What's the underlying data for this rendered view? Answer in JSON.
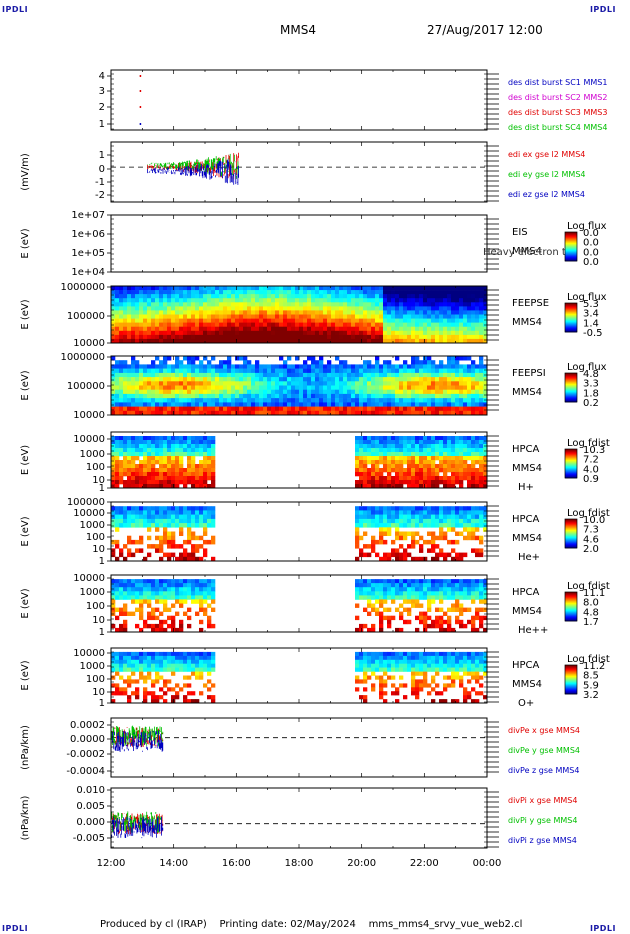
{
  "corner_label": "IPDLI",
  "header": {
    "spacecraft": "MMS4",
    "datetime": "27/Aug/2017 12:00"
  },
  "footer": {
    "produced_by": "Produced by cl (IRAP)",
    "printing_date": "Printing date: 02/May/2024",
    "filename": "mms_mms4_srvy_vue_web2.cl"
  },
  "colors": {
    "red": "#e00000",
    "green": "#00c000",
    "blue": "#0000c0",
    "magenta": "#d000d0"
  },
  "chart_data": [
    {
      "type": "scatter",
      "id": "burst",
      "yticks": [
        "4",
        "3",
        "2",
        "1"
      ],
      "ylabel": "",
      "legend": [
        {
          "text": "des dist burst SC1 MMS1",
          "color": "#0000c0"
        },
        {
          "text": "des dist burst SC2 MMS2",
          "color": "#d000d0"
        },
        {
          "text": "des dist burst SC3 MMS3",
          "color": "#e00000"
        },
        {
          "text": "des dist burst SC4 MMS4",
          "color": "#00c000"
        }
      ],
      "points": [
        {
          "t": "12:30",
          "sc": 4,
          "color": "#e00000"
        },
        {
          "t": "12:30",
          "sc": 3,
          "color": "#e00000"
        },
        {
          "t": "12:30",
          "sc": 2,
          "color": "#e00000"
        },
        {
          "t": "12:30",
          "sc": 1,
          "color": "#0000c0"
        }
      ]
    },
    {
      "type": "line",
      "id": "efield",
      "ylabel": "(mV/m)",
      "yticks": [
        "1",
        "0",
        "-1",
        "-2"
      ],
      "ylim": [
        -2.5,
        1.8
      ],
      "zero_line": true,
      "legend": [
        {
          "text": "edi ex gse l2 MMS4",
          "color": "#e00000"
        },
        {
          "text": "edi ey gse l2 MMS4",
          "color": "#00c000"
        },
        {
          "text": "edi ez gse l2 MMS4",
          "color": "#0000c0"
        }
      ],
      "data_range": [
        "13:10",
        "16:05"
      ]
    },
    {
      "type": "heatmap",
      "id": "eis",
      "ylabel": "E (eV)",
      "yticks": [
        "1e+07",
        "1e+06",
        "1e+05",
        "1e+04"
      ],
      "instrument": [
        "EIS",
        "MMS4"
      ],
      "overlay_text": "Heavy electron to",
      "cbar_title": "Log flux",
      "cbar_ticks": [
        "0.0",
        "0.0",
        "0.0",
        "0.0"
      ]
    },
    {
      "type": "heatmap",
      "id": "feepse",
      "ylabel": "E (eV)",
      "yticks": [
        "1000000",
        "100000",
        "10000"
      ],
      "instrument": [
        "FEEPSE",
        "MMS4"
      ],
      "cbar_title": "Log flux",
      "cbar_ticks": [
        "5.3",
        "3.4",
        "1.4",
        "-0.5"
      ]
    },
    {
      "type": "heatmap",
      "id": "feepsi",
      "ylabel": "E (eV)",
      "yticks": [
        "1000000",
        "100000",
        "10000"
      ],
      "instrument": [
        "FEEPSI",
        "MMS4"
      ],
      "cbar_title": "Log flux",
      "cbar_ticks": [
        "4.8",
        "3.3",
        "1.8",
        "0.2"
      ]
    },
    {
      "type": "heatmap",
      "id": "hpca_h",
      "ylabel": "E (eV)",
      "yticks": [
        "10000",
        "1000",
        "100",
        "10",
        "1"
      ],
      "instrument": [
        "HPCA",
        "MMS4",
        "H+"
      ],
      "cbar_title": "Log fdist",
      "cbar_ticks": [
        "10.3",
        "7.2",
        "4.0",
        "0.9"
      ],
      "data_intervals": [
        [
          "12:00",
          "15:20"
        ],
        [
          "19:50",
          "00:00"
        ]
      ]
    },
    {
      "type": "heatmap",
      "id": "hpca_he",
      "ylabel": "E (eV)",
      "yticks": [
        "100000",
        "10000",
        "1000",
        "100",
        "10",
        "1"
      ],
      "instrument": [
        "HPCA",
        "MMS4",
        "He+"
      ],
      "cbar_title": "Log fdist",
      "cbar_ticks": [
        "10.0",
        "7.3",
        "4.6",
        "2.0"
      ],
      "data_intervals": [
        [
          "12:00",
          "15:20"
        ],
        [
          "19:50",
          "00:00"
        ]
      ]
    },
    {
      "type": "heatmap",
      "id": "hpca_he2",
      "ylabel": "E (eV)",
      "yticks": [
        "10000",
        "1000",
        "100",
        "10",
        "1"
      ],
      "instrument": [
        "HPCA",
        "MMS4",
        "He++"
      ],
      "cbar_title": "Log fdist",
      "cbar_ticks": [
        "11.1",
        "8.0",
        "4.8",
        "1.7"
      ],
      "data_intervals": [
        [
          "12:00",
          "15:20"
        ],
        [
          "19:50",
          "00:00"
        ]
      ]
    },
    {
      "type": "heatmap",
      "id": "hpca_o",
      "ylabel": "E (eV)",
      "yticks": [
        "10000",
        "1000",
        "100",
        "10",
        "1"
      ],
      "instrument": [
        "HPCA",
        "MMS4",
        "O+"
      ],
      "cbar_title": "Log fdist",
      "cbar_ticks": [
        "11.2",
        "8.5",
        "5.9",
        "3.2"
      ],
      "data_intervals": [
        [
          "12:00",
          "15:20"
        ],
        [
          "19:50",
          "00:00"
        ]
      ]
    },
    {
      "type": "line",
      "id": "divpe",
      "ylabel": "(nPa/km)",
      "yticks": [
        "0.0002",
        "0.0000",
        "-0.0002",
        "-0.0004"
      ],
      "ylim": [
        -0.0005,
        0.00025
      ],
      "zero_line": true,
      "legend": [
        {
          "text": "divPe x gse MMS4",
          "color": "#e00000"
        },
        {
          "text": "divPe y gse MMS4",
          "color": "#00c000"
        },
        {
          "text": "divPe z gse MMS4",
          "color": "#0000c0"
        }
      ],
      "data_range": [
        "12:00",
        "13:40"
      ]
    },
    {
      "type": "line",
      "id": "divpi",
      "ylabel": "(nPa/km)",
      "yticks": [
        "0.010",
        "0.005",
        "0.000",
        "-0.005"
      ],
      "ylim": [
        -0.0075,
        0.011
      ],
      "zero_line": true,
      "legend": [
        {
          "text": "divPi x gse MMS4",
          "color": "#e00000"
        },
        {
          "text": "divPi y gse MMS4",
          "color": "#00c000"
        },
        {
          "text": "divPi z gse MMS4",
          "color": "#0000c0"
        }
      ],
      "data_range": [
        "12:00",
        "13:40"
      ]
    }
  ],
  "xaxis": {
    "ticks": [
      "12:00",
      "14:00",
      "16:00",
      "18:00",
      "20:00",
      "22:00",
      "00:00"
    ]
  }
}
